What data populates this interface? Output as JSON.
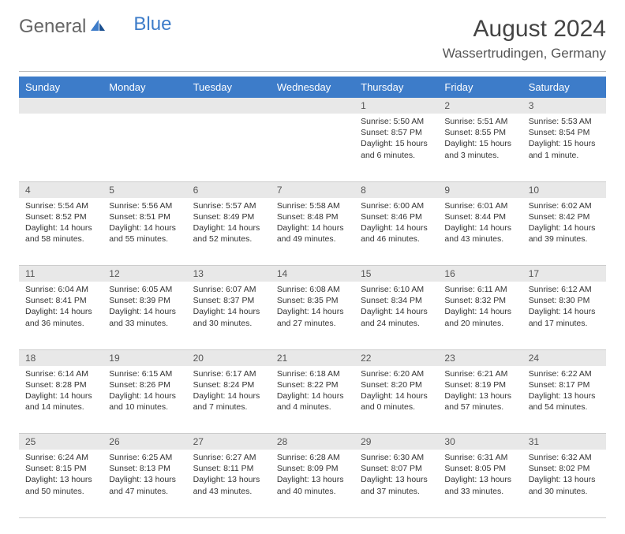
{
  "logo": {
    "general": "General",
    "blue": "Blue"
  },
  "title": "August 2024",
  "location": "Wassertrudingen, Germany",
  "day_headers": [
    "Sunday",
    "Monday",
    "Tuesday",
    "Wednesday",
    "Thursday",
    "Friday",
    "Saturday"
  ],
  "colors": {
    "header_bg": "#3d7cc9",
    "header_text": "#ffffff",
    "daynum_bg": "#e8e8e8",
    "cell_bg": "#ffffff",
    "border": "#cccccc",
    "logo_general": "#666666",
    "logo_blue": "#3d7cc9"
  },
  "typography": {
    "title_fontsize": 30,
    "location_fontsize": 17,
    "header_fontsize": 13,
    "daynum_fontsize": 12,
    "cell_fontsize": 10.5
  },
  "weeks": [
    {
      "nums": [
        "",
        "",
        "",
        "",
        "1",
        "2",
        "3"
      ],
      "cells": [
        null,
        null,
        null,
        null,
        {
          "sunrise": "Sunrise: 5:50 AM",
          "sunset": "Sunset: 8:57 PM",
          "daylight": "Daylight: 15 hours and 6 minutes."
        },
        {
          "sunrise": "Sunrise: 5:51 AM",
          "sunset": "Sunset: 8:55 PM",
          "daylight": "Daylight: 15 hours and 3 minutes."
        },
        {
          "sunrise": "Sunrise: 5:53 AM",
          "sunset": "Sunset: 8:54 PM",
          "daylight": "Daylight: 15 hours and 1 minute."
        }
      ]
    },
    {
      "nums": [
        "4",
        "5",
        "6",
        "7",
        "8",
        "9",
        "10"
      ],
      "cells": [
        {
          "sunrise": "Sunrise: 5:54 AM",
          "sunset": "Sunset: 8:52 PM",
          "daylight": "Daylight: 14 hours and 58 minutes."
        },
        {
          "sunrise": "Sunrise: 5:56 AM",
          "sunset": "Sunset: 8:51 PM",
          "daylight": "Daylight: 14 hours and 55 minutes."
        },
        {
          "sunrise": "Sunrise: 5:57 AM",
          "sunset": "Sunset: 8:49 PM",
          "daylight": "Daylight: 14 hours and 52 minutes."
        },
        {
          "sunrise": "Sunrise: 5:58 AM",
          "sunset": "Sunset: 8:48 PM",
          "daylight": "Daylight: 14 hours and 49 minutes."
        },
        {
          "sunrise": "Sunrise: 6:00 AM",
          "sunset": "Sunset: 8:46 PM",
          "daylight": "Daylight: 14 hours and 46 minutes."
        },
        {
          "sunrise": "Sunrise: 6:01 AM",
          "sunset": "Sunset: 8:44 PM",
          "daylight": "Daylight: 14 hours and 43 minutes."
        },
        {
          "sunrise": "Sunrise: 6:02 AM",
          "sunset": "Sunset: 8:42 PM",
          "daylight": "Daylight: 14 hours and 39 minutes."
        }
      ]
    },
    {
      "nums": [
        "11",
        "12",
        "13",
        "14",
        "15",
        "16",
        "17"
      ],
      "cells": [
        {
          "sunrise": "Sunrise: 6:04 AM",
          "sunset": "Sunset: 8:41 PM",
          "daylight": "Daylight: 14 hours and 36 minutes."
        },
        {
          "sunrise": "Sunrise: 6:05 AM",
          "sunset": "Sunset: 8:39 PM",
          "daylight": "Daylight: 14 hours and 33 minutes."
        },
        {
          "sunrise": "Sunrise: 6:07 AM",
          "sunset": "Sunset: 8:37 PM",
          "daylight": "Daylight: 14 hours and 30 minutes."
        },
        {
          "sunrise": "Sunrise: 6:08 AM",
          "sunset": "Sunset: 8:35 PM",
          "daylight": "Daylight: 14 hours and 27 minutes."
        },
        {
          "sunrise": "Sunrise: 6:10 AM",
          "sunset": "Sunset: 8:34 PM",
          "daylight": "Daylight: 14 hours and 24 minutes."
        },
        {
          "sunrise": "Sunrise: 6:11 AM",
          "sunset": "Sunset: 8:32 PM",
          "daylight": "Daylight: 14 hours and 20 minutes."
        },
        {
          "sunrise": "Sunrise: 6:12 AM",
          "sunset": "Sunset: 8:30 PM",
          "daylight": "Daylight: 14 hours and 17 minutes."
        }
      ]
    },
    {
      "nums": [
        "18",
        "19",
        "20",
        "21",
        "22",
        "23",
        "24"
      ],
      "cells": [
        {
          "sunrise": "Sunrise: 6:14 AM",
          "sunset": "Sunset: 8:28 PM",
          "daylight": "Daylight: 14 hours and 14 minutes."
        },
        {
          "sunrise": "Sunrise: 6:15 AM",
          "sunset": "Sunset: 8:26 PM",
          "daylight": "Daylight: 14 hours and 10 minutes."
        },
        {
          "sunrise": "Sunrise: 6:17 AM",
          "sunset": "Sunset: 8:24 PM",
          "daylight": "Daylight: 14 hours and 7 minutes."
        },
        {
          "sunrise": "Sunrise: 6:18 AM",
          "sunset": "Sunset: 8:22 PM",
          "daylight": "Daylight: 14 hours and 4 minutes."
        },
        {
          "sunrise": "Sunrise: 6:20 AM",
          "sunset": "Sunset: 8:20 PM",
          "daylight": "Daylight: 14 hours and 0 minutes."
        },
        {
          "sunrise": "Sunrise: 6:21 AM",
          "sunset": "Sunset: 8:19 PM",
          "daylight": "Daylight: 13 hours and 57 minutes."
        },
        {
          "sunrise": "Sunrise: 6:22 AM",
          "sunset": "Sunset: 8:17 PM",
          "daylight": "Daylight: 13 hours and 54 minutes."
        }
      ]
    },
    {
      "nums": [
        "25",
        "26",
        "27",
        "28",
        "29",
        "30",
        "31"
      ],
      "cells": [
        {
          "sunrise": "Sunrise: 6:24 AM",
          "sunset": "Sunset: 8:15 PM",
          "daylight": "Daylight: 13 hours and 50 minutes."
        },
        {
          "sunrise": "Sunrise: 6:25 AM",
          "sunset": "Sunset: 8:13 PM",
          "daylight": "Daylight: 13 hours and 47 minutes."
        },
        {
          "sunrise": "Sunrise: 6:27 AM",
          "sunset": "Sunset: 8:11 PM",
          "daylight": "Daylight: 13 hours and 43 minutes."
        },
        {
          "sunrise": "Sunrise: 6:28 AM",
          "sunset": "Sunset: 8:09 PM",
          "daylight": "Daylight: 13 hours and 40 minutes."
        },
        {
          "sunrise": "Sunrise: 6:30 AM",
          "sunset": "Sunset: 8:07 PM",
          "daylight": "Daylight: 13 hours and 37 minutes."
        },
        {
          "sunrise": "Sunrise: 6:31 AM",
          "sunset": "Sunset: 8:05 PM",
          "daylight": "Daylight: 13 hours and 33 minutes."
        },
        {
          "sunrise": "Sunrise: 6:32 AM",
          "sunset": "Sunset: 8:02 PM",
          "daylight": "Daylight: 13 hours and 30 minutes."
        }
      ]
    }
  ]
}
